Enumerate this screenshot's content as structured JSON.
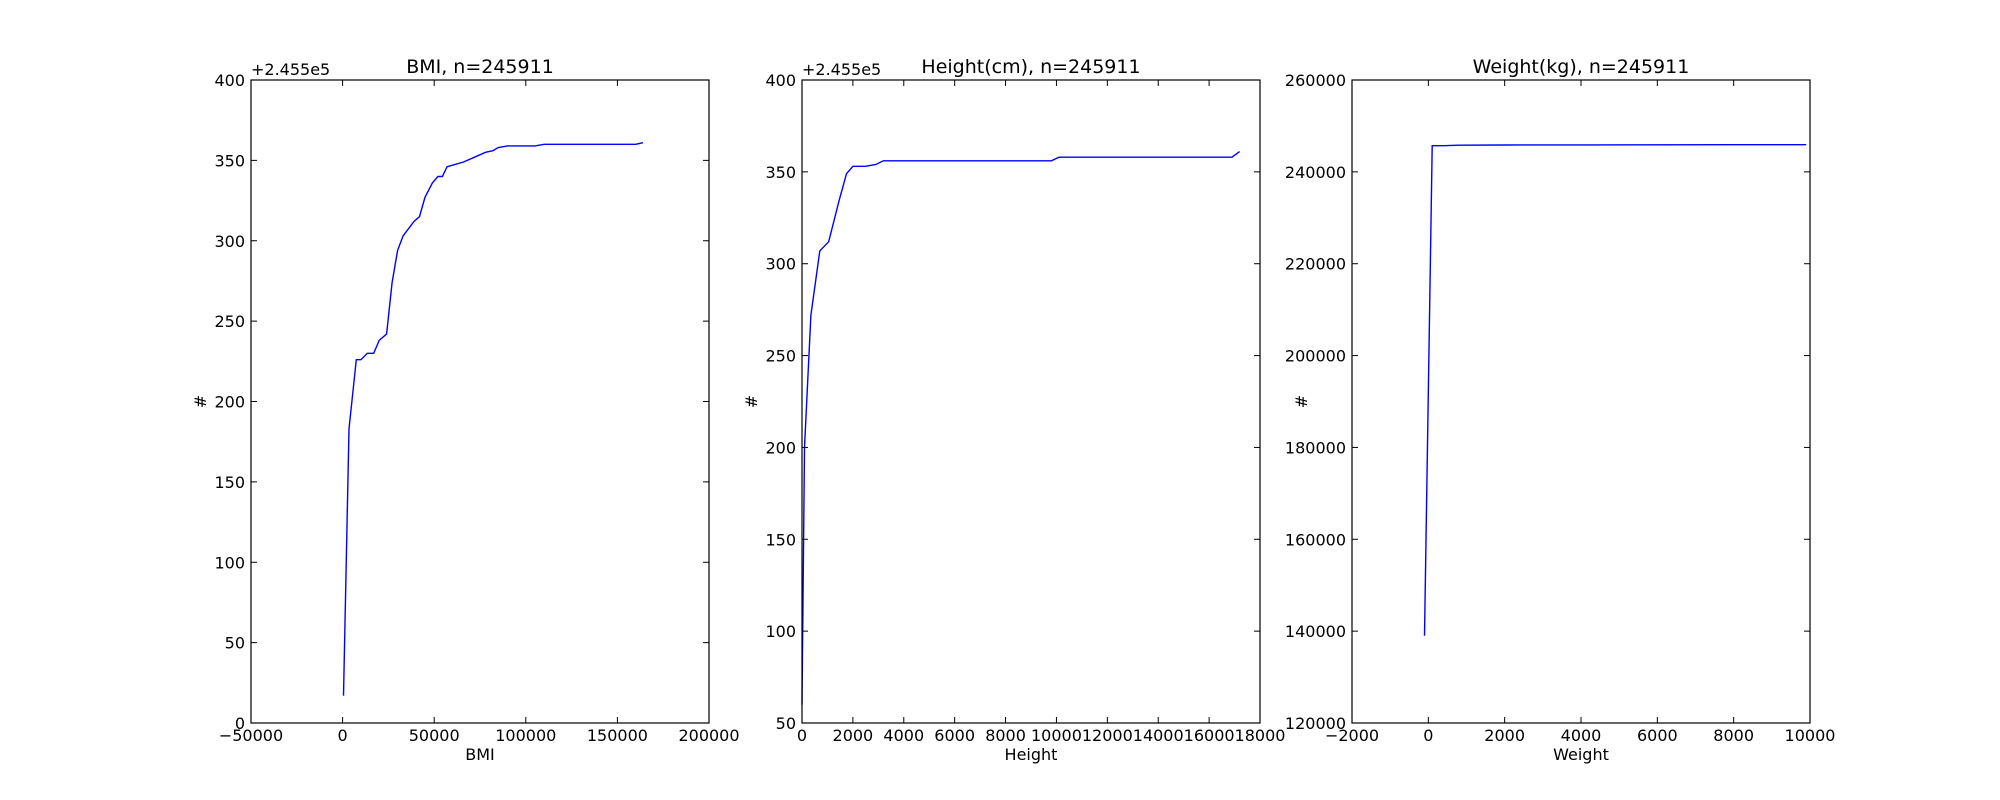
{
  "chart_data": [
    {
      "type": "line",
      "title": "BMI, n=245911",
      "xlabel": "BMI",
      "ylabel": "#",
      "y_offset_label": "+2.455e5",
      "xlim": [
        -50000,
        200000
      ],
      "ylim": [
        0,
        400
      ],
      "xticks": [
        -50000,
        0,
        50000,
        100000,
        150000,
        200000
      ],
      "xtick_labels": [
        "−50000",
        "0",
        "50000",
        "100000",
        "150000",
        "200000"
      ],
      "yticks": [
        0,
        50,
        100,
        150,
        200,
        250,
        300,
        350,
        400
      ],
      "ytick_labels": [
        "0",
        "50",
        "100",
        "150",
        "200",
        "250",
        "300",
        "350",
        "400"
      ],
      "color": "#0000ff",
      "series": [
        {
          "x": [
            500,
            3500,
            7500,
            10000,
            13500,
            17000,
            20000,
            24000,
            27000,
            30000,
            33000,
            35000,
            39000,
            42000,
            45000,
            49000,
            52000,
            54500,
            57000,
            60000,
            66000,
            72000,
            78000,
            82000,
            85000,
            90000,
            96000,
            100000,
            105000,
            110000,
            120000,
            130000,
            140000,
            150000,
            160000,
            164000
          ],
          "y": [
            17,
            183,
            226,
            226,
            230,
            230,
            238,
            242,
            274,
            294,
            303,
            306,
            312,
            315,
            327,
            336,
            340,
            340,
            346,
            347,
            349,
            352,
            355,
            356,
            358,
            359,
            359,
            359,
            359,
            360,
            360,
            360,
            360,
            360,
            360,
            361
          ]
        }
      ]
    },
    {
      "type": "line",
      "title": "Height(cm), n=245911",
      "xlabel": "Height",
      "ylabel": "#",
      "y_offset_label": "+2.455e5",
      "xlim": [
        0,
        18000
      ],
      "ylim": [
        50,
        400
      ],
      "xticks": [
        0,
        2000,
        4000,
        6000,
        8000,
        10000,
        12000,
        14000,
        16000,
        18000
      ],
      "xtick_labels": [
        "0",
        "2000",
        "4000",
        "6000",
        "8000",
        "10000",
        "12000",
        "14000",
        "16000",
        "18000"
      ],
      "yticks": [
        50,
        100,
        150,
        200,
        250,
        300,
        350,
        400
      ],
      "ytick_labels": [
        "50",
        "100",
        "150",
        "200",
        "250",
        "300",
        "350",
        "400"
      ],
      "color": "#0000ff",
      "series": [
        {
          "x": [
            0,
            100,
            350,
            700,
            1050,
            1450,
            1750,
            2000,
            2500,
            2900,
            3200,
            4000,
            6000,
            8000,
            9800,
            10100,
            12000,
            14000,
            16000,
            16900,
            17200
          ],
          "y": [
            60,
            200,
            272,
            307,
            312,
            334,
            349,
            353,
            353,
            354,
            356,
            356,
            356,
            356,
            356,
            358,
            358,
            358,
            358,
            358,
            361
          ]
        }
      ]
    },
    {
      "type": "line",
      "title": "Weight(kg), n=245911",
      "xlabel": "Weight",
      "ylabel": "#",
      "y_offset_label": "",
      "xlim": [
        -2000,
        10000
      ],
      "ylim": [
        120000,
        260000
      ],
      "xticks": [
        -2000,
        0,
        2000,
        4000,
        6000,
        8000,
        10000
      ],
      "xtick_labels": [
        "−2000",
        "0",
        "2000",
        "4000",
        "6000",
        "8000",
        "10000"
      ],
      "yticks": [
        120000,
        140000,
        160000,
        180000,
        200000,
        220000,
        240000,
        260000
      ],
      "ytick_labels": [
        "120000",
        "140000",
        "160000",
        "180000",
        "200000",
        "220000",
        "240000",
        "260000"
      ],
      "color": "#0000ff",
      "series": [
        {
          "x": [
            -100,
            100,
            400,
            800,
            2000,
            4000,
            6000,
            8000,
            9900
          ],
          "y": [
            139000,
            245700,
            245700,
            245800,
            245850,
            245880,
            245900,
            245905,
            245911
          ]
        }
      ]
    }
  ]
}
